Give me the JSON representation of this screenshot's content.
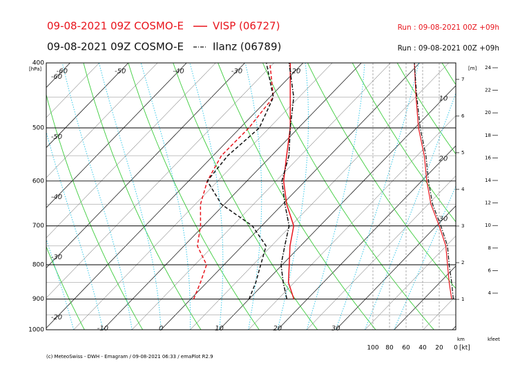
{
  "chart_data": {
    "type": "emagram",
    "y_label": "[hPa]",
    "ylim": [
      1000,
      400
    ],
    "yticks": [
      400,
      500,
      600,
      700,
      800,
      900,
      1000
    ],
    "log_scale": true,
    "xlim": [
      -19.7,
      50.6
    ],
    "pressure": [
      900,
      850,
      800,
      750,
      700,
      650,
      600,
      550,
      500,
      450,
      400
    ],
    "series": [
      {
        "name": "VISP (06727)",
        "model": "09-08-2021 09Z COSMO-E",
        "run": "Run : 09-08-2021 00Z +09h",
        "color": "#e8141c",
        "temperature": [
          17.7,
          14.0,
          11.2,
          8.2,
          5.5,
          0.7,
          -3.7,
          -7.4,
          -11.4,
          -16.5,
          -22.2
        ],
        "dewpoint": [
          0.5,
          -1.1,
          -3.0,
          -7.7,
          -10.5,
          -14.1,
          -16.8,
          -18.6,
          -18.5,
          -19.4,
          -25.7
        ],
        "wind_speed": [
          5,
          8,
          10,
          12,
          20,
          30,
          35,
          38,
          45,
          48,
          50
        ]
      },
      {
        "name": "Ilanz (06789)",
        "model": "09-08-2021 09Z COSMO-E",
        "run": "Run : 09-08-2021 00Z +09h",
        "color": "#111111",
        "temperature": [
          16.5,
          13.1,
          9.8,
          7.3,
          4.7,
          0.4,
          -4.0,
          -7.0,
          -11.4,
          -15.9,
          -22.4
        ],
        "dewpoint": [
          10.0,
          8.4,
          6.3,
          4.1,
          -1.6,
          -10.5,
          -16.8,
          -17.5,
          -16.7,
          -19.4,
          -26.3
        ],
        "wind_speed": [
          3,
          5,
          8,
          10,
          18,
          28,
          33,
          36,
          43,
          47,
          50
        ]
      }
    ],
    "isotherm_labels": {
      "top": [
        -60,
        -50,
        -40,
        -30,
        -20
      ],
      "left": [
        -60,
        -50,
        -40,
        -30,
        -20
      ],
      "bottom": [
        -10,
        0,
        10,
        20,
        30
      ],
      "right": [
        10,
        20,
        30
      ]
    },
    "wind_axis": {
      "label": "[kt]",
      "lim": [
        100,
        0
      ],
      "ticks": [
        100,
        80,
        60,
        40,
        20,
        0
      ]
    },
    "height_axis": {
      "unit_label": "[m]",
      "label": "km",
      "lim": [
        0.17,
        7.45
      ],
      "ticks": [
        1,
        2,
        3,
        4,
        5,
        6,
        7
      ]
    },
    "feet_axis": {
      "label": "kfeet",
      "lim": [
        0.75,
        24.43
      ],
      "ticks": [
        4,
        6,
        8,
        10,
        12,
        14,
        16,
        18,
        20,
        22,
        24
      ]
    },
    "footer": "(c) MeteoSwiss - DWH - Emagram / 09-08-2021 06:33 / emaPlot R2.9"
  }
}
